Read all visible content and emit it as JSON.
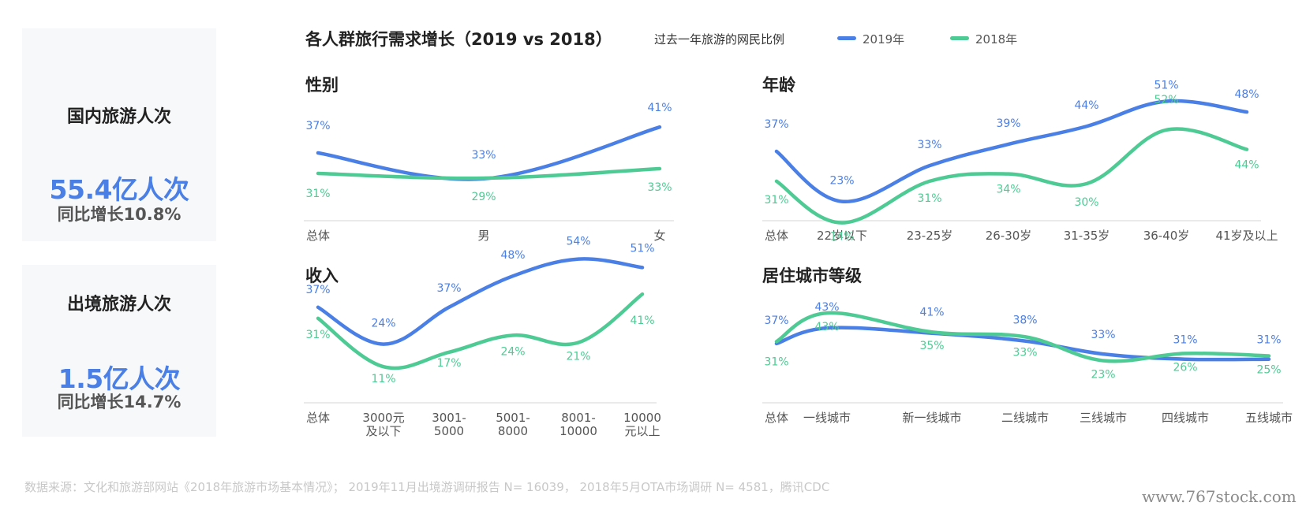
{
  "cards": [
    {
      "title": "国内旅游人次",
      "value": "55.4亿人次",
      "growth": "同比增长10.8%"
    },
    {
      "title": "出境旅游人次",
      "value": "1.5亿人次",
      "growth": "同比增长14.7%"
    }
  ],
  "main_title": "各人群旅行需求增长（2019 vs 2018）",
  "legend": {
    "label": "过去一年旅游的网民比例",
    "items": [
      {
        "name": "2019年",
        "color": "#4a7fe6"
      },
      {
        "name": "2018年",
        "color": "#4ecb94"
      }
    ]
  },
  "colors": {
    "series_2019": "#4a7fe6",
    "series_2018": "#4ecb94"
  },
  "source": "数据来源：文化和旅游部网站《2018年旅游市场基本情况》； 2019年11月出境游调研报告 N= 16039， 2018年5月OTA市场调研 N= 4581，腾讯CDC",
  "watermark": "www.767stock.com",
  "chart_data": [
    {
      "type": "line",
      "title": "性别",
      "categories": [
        "总体",
        "男",
        "女"
      ],
      "series": [
        {
          "name": "2019年",
          "values": [
            37,
            33,
            41
          ],
          "labels": [
            "37%",
            "33%",
            "41%"
          ]
        },
        {
          "name": "2018年",
          "values": [
            31,
            29,
            33
          ],
          "labels": [
            "31%",
            "29%",
            "33%"
          ]
        }
      ]
    },
    {
      "type": "line",
      "title": "年龄",
      "categories": [
        "总体",
        "22岁以下",
        "23-25岁",
        "26-30岁",
        "31-35岁",
        "36-40岁",
        "41岁及以上"
      ],
      "series": [
        {
          "name": "2019年",
          "values": [
            37,
            23,
            33,
            39,
            44,
            51,
            48
          ],
          "labels": [
            "37%",
            "23%",
            "33%",
            "39%",
            "44%",
            "51%",
            "48%"
          ]
        },
        {
          "name": "2018年",
          "values": [
            31,
            14,
            31,
            34,
            30,
            52,
            44
          ],
          "labels": [
            "31%",
            "14%",
            "31%",
            "34%",
            "30%",
            "52%",
            "44%"
          ]
        }
      ]
    },
    {
      "type": "line",
      "title": "收入",
      "categories": [
        [
          "总体"
        ],
        [
          "3000元",
          "及以下"
        ],
        [
          "3001-",
          "5000"
        ],
        [
          "5001-",
          "8000"
        ],
        [
          "8001-",
          "10000"
        ],
        [
          "10000",
          "元以上"
        ]
      ],
      "series": [
        {
          "name": "2019年",
          "values": [
            37,
            24,
            37,
            48,
            54,
            51
          ],
          "labels": [
            "37%",
            "24%",
            "37%",
            "48%",
            "54%",
            "51%"
          ]
        },
        {
          "name": "2018年",
          "values": [
            31,
            11,
            17,
            24,
            21,
            41
          ],
          "labels": [
            "31%",
            "11%",
            "17%",
            "24%",
            "21%",
            "41%"
          ]
        }
      ]
    },
    {
      "type": "line",
      "title": "居住城市等级",
      "categories": [
        "总体",
        "一线城市",
        "新一线城市",
        "二线城市",
        "三线城市",
        "四线城市",
        "五线城市"
      ],
      "series": [
        {
          "name": "2019年",
          "values": [
            37,
            43,
            41,
            38,
            33,
            31,
            31
          ],
          "labels": [
            "37%",
            "43%",
            "41%",
            "38%",
            "33%",
            "31%",
            "31%"
          ]
        },
        {
          "name": "2018年",
          "values": [
            31,
            43,
            35,
            33,
            23,
            26,
            25
          ],
          "labels": [
            "31%",
            "43%",
            "35%",
            "33%",
            "23%",
            "26%",
            "25%"
          ]
        }
      ]
    }
  ]
}
